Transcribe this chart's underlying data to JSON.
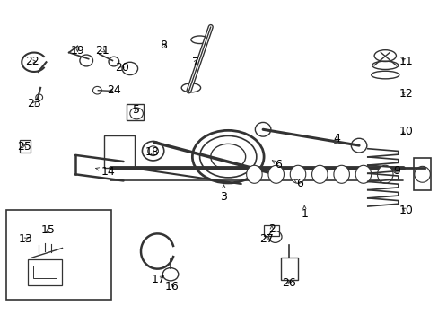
{
  "title": "",
  "bg_color": "#ffffff",
  "fig_width": 4.89,
  "fig_height": 3.6,
  "dpi": 100,
  "font_size": 9,
  "label_color": "#000000",
  "line_color": "#333333"
}
